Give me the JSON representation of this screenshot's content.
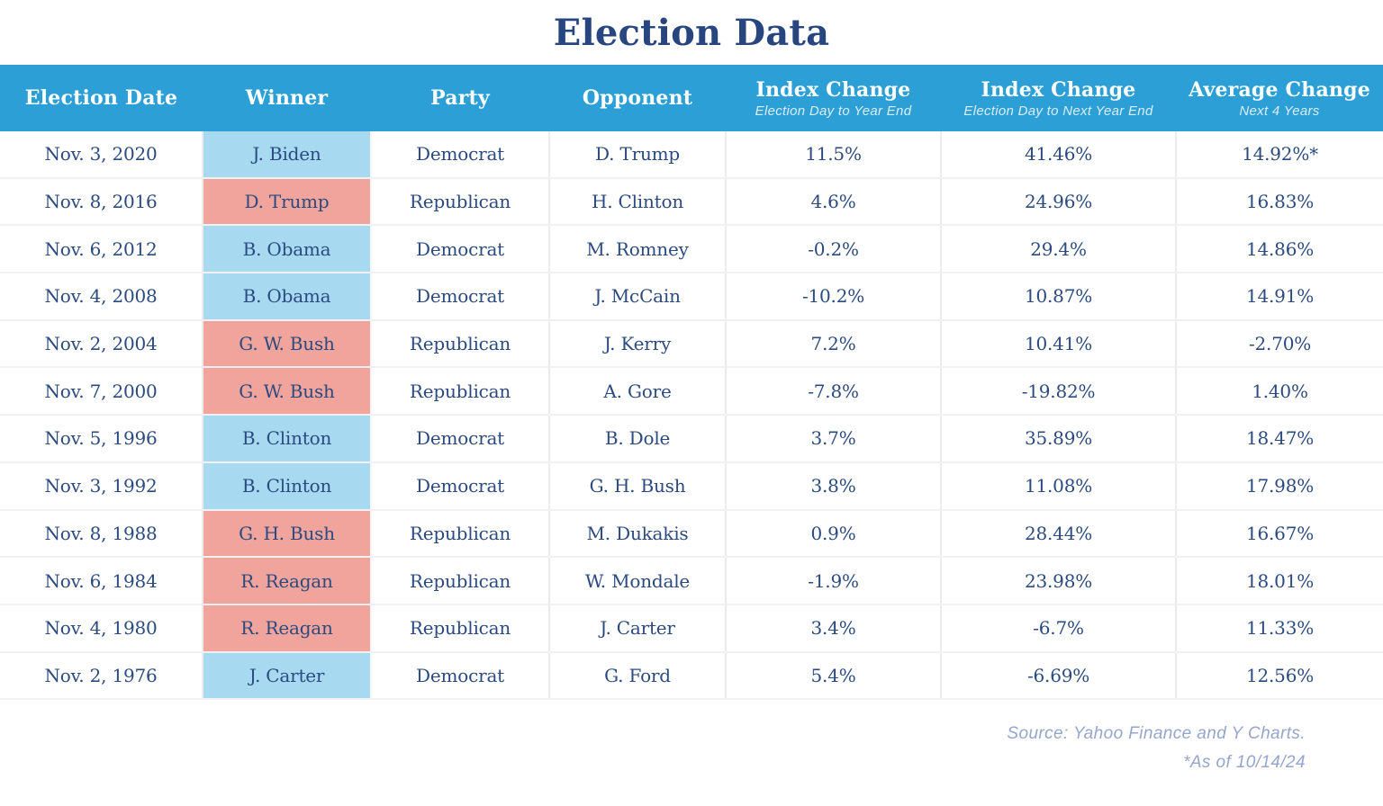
{
  "title": "Election Data",
  "chart_data": {
    "type": "table",
    "title": "Election Data",
    "columns": [
      {
        "label": "Election Date",
        "sublabel": ""
      },
      {
        "label": "Winner",
        "sublabel": ""
      },
      {
        "label": "Party",
        "sublabel": ""
      },
      {
        "label": "Opponent",
        "sublabel": ""
      },
      {
        "label": "Index Change",
        "sublabel": "Election Day to Year End"
      },
      {
        "label": "Index Change",
        "sublabel": "Election Day to Next Year End"
      },
      {
        "label": "Average Change",
        "sublabel": "Next 4 Years"
      }
    ],
    "rows": [
      {
        "date": "Nov. 3, 2020",
        "winner": "J. Biden",
        "party": "Democrat",
        "opponent": "D. Trump",
        "index_change_year_end": "11.5%",
        "index_change_next_year_end": "41.46%",
        "average_change_4yr": "14.92%*"
      },
      {
        "date": "Nov. 8, 2016",
        "winner": "D. Trump",
        "party": "Republican",
        "opponent": "H. Clinton",
        "index_change_year_end": "4.6%",
        "index_change_next_year_end": "24.96%",
        "average_change_4yr": "16.83%"
      },
      {
        "date": "Nov. 6, 2012",
        "winner": "B. Obama",
        "party": "Democrat",
        "opponent": "M. Romney",
        "index_change_year_end": "-0.2%",
        "index_change_next_year_end": "29.4%",
        "average_change_4yr": "14.86%"
      },
      {
        "date": "Nov. 4, 2008",
        "winner": "B. Obama",
        "party": "Democrat",
        "opponent": "J. McCain",
        "index_change_year_end": "-10.2%",
        "index_change_next_year_end": "10.87%",
        "average_change_4yr": "14.91%"
      },
      {
        "date": "Nov. 2, 2004",
        "winner": "G. W. Bush",
        "party": "Republican",
        "opponent": "J. Kerry",
        "index_change_year_end": "7.2%",
        "index_change_next_year_end": "10.41%",
        "average_change_4yr": "-2.70%"
      },
      {
        "date": "Nov. 7, 2000",
        "winner": "G. W. Bush",
        "party": "Republican",
        "opponent": "A. Gore",
        "index_change_year_end": "-7.8%",
        "index_change_next_year_end": "-19.82%",
        "average_change_4yr": "1.40%"
      },
      {
        "date": "Nov. 5, 1996",
        "winner": "B. Clinton",
        "party": "Democrat",
        "opponent": "B. Dole",
        "index_change_year_end": "3.7%",
        "index_change_next_year_end": "35.89%",
        "average_change_4yr": "18.47%"
      },
      {
        "date": "Nov. 3, 1992",
        "winner": "B. Clinton",
        "party": "Democrat",
        "opponent": "G. H. Bush",
        "index_change_year_end": "3.8%",
        "index_change_next_year_end": "11.08%",
        "average_change_4yr": "17.98%"
      },
      {
        "date": "Nov. 8, 1988",
        "winner": "G. H. Bush",
        "party": "Republican",
        "opponent": "M. Dukakis",
        "index_change_year_end": "0.9%",
        "index_change_next_year_end": "28.44%",
        "average_change_4yr": "16.67%"
      },
      {
        "date": "Nov. 6, 1984",
        "winner": "R. Reagan",
        "party": "Republican",
        "opponent": "W. Mondale",
        "index_change_year_end": "-1.9%",
        "index_change_next_year_end": "23.98%",
        "average_change_4yr": "18.01%"
      },
      {
        "date": "Nov. 4, 1980",
        "winner": "R. Reagan",
        "party": "Republican",
        "opponent": "J. Carter",
        "index_change_year_end": "3.4%",
        "index_change_next_year_end": "-6.7%",
        "average_change_4yr": "11.33%"
      },
      {
        "date": "Nov. 2, 1976",
        "winner": "J. Carter",
        "party": "Democrat",
        "opponent": "G. Ford",
        "index_change_year_end": "5.4%",
        "index_change_next_year_end": "-6.69%",
        "average_change_4yr": "12.56%"
      }
    ]
  },
  "footer": {
    "line1": "Source: Yahoo Finance and Y Charts.",
    "line2": "*As of 10/14/24"
  },
  "colors": {
    "header_bg": "#2C9FD6",
    "democrat_bg": "#A7D9F1",
    "republican_bg": "#F1A49C",
    "text_navy": "#2B4A80",
    "header_sub_text": "#D9EEF9",
    "footer_text": "#96A5CE"
  }
}
